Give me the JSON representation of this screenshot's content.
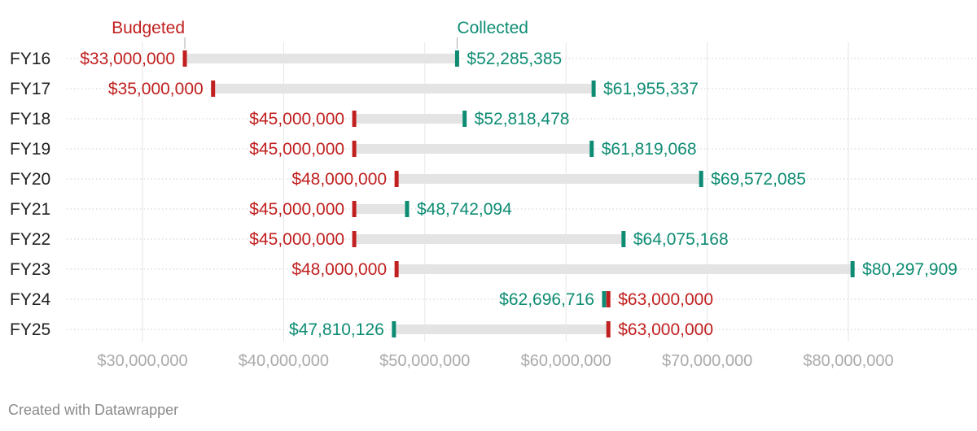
{
  "chart_data": {
    "type": "dumbbell",
    "xlim": [
      25000000,
      88000000
    ],
    "ticks": [
      30000000,
      40000000,
      50000000,
      60000000,
      70000000,
      80000000
    ],
    "tick_labels": [
      "$30,000,000",
      "$40,000,000",
      "$50,000,000",
      "$60,000,000",
      "$70,000,000",
      "$80,000,000"
    ],
    "categories": [
      "FY16",
      "FY17",
      "FY18",
      "FY19",
      "FY20",
      "FY21",
      "FY22",
      "FY23",
      "FY24",
      "FY25"
    ],
    "series": [
      {
        "name": "Budgeted",
        "color": "#c0201f",
        "values": [
          33000000,
          35000000,
          45000000,
          45000000,
          48000000,
          45000000,
          45000000,
          48000000,
          63000000,
          63000000
        ],
        "labels": [
          "$33,000,000",
          "$35,000,000",
          "$45,000,000",
          "$45,000,000",
          "$48,000,000",
          "$45,000,000",
          "$45,000,000",
          "$48,000,000",
          "$63,000,000",
          "$63,000,000"
        ]
      },
      {
        "name": "Collected",
        "color": "#0e8c73",
        "values": [
          52285385,
          61955337,
          52818478,
          61819068,
          69572085,
          48742094,
          64075168,
          80297909,
          62696716,
          47810126
        ],
        "labels": [
          "$52,285,385",
          "$61,955,337",
          "$52,818,478",
          "$61,819,068",
          "$69,572,085",
          "$48,742,094",
          "$64,075,168",
          "$80,297,909",
          "$62,696,716",
          "$47,810,126"
        ]
      }
    ],
    "range_bar_color": "#e4e4e4",
    "grid": true,
    "legend": "above-first-row"
  },
  "footer": {
    "credit": "Created with Datawrapper"
  }
}
